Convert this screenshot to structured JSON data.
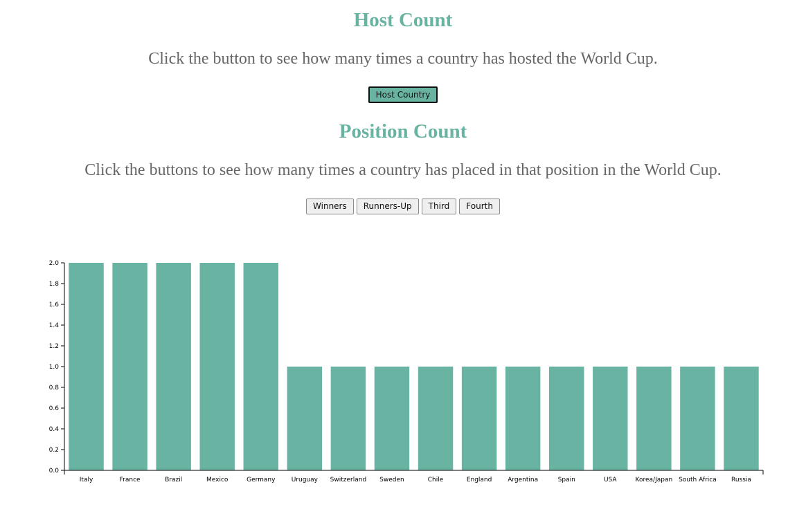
{
  "host_section": {
    "title": "Host Count",
    "description": "Click the button to see how many times a country has hosted the World Cup.",
    "button_label": "Host Country"
  },
  "position_section": {
    "title": "Position Count",
    "description": "Click the buttons to see how many times a country has placed in that position in the World Cup.",
    "buttons": [
      {
        "label": "Winners"
      },
      {
        "label": "Runners-Up"
      },
      {
        "label": "Third"
      },
      {
        "label": "Fourth"
      }
    ]
  },
  "colors": {
    "accent": "#69b3a2",
    "text": "#666666"
  },
  "chart_data": {
    "type": "bar",
    "categories": [
      "Italy",
      "France",
      "Brazil",
      "Mexico",
      "Germany",
      "Uruguay",
      "Switzerland",
      "Sweden",
      "Chile",
      "England",
      "Argentina",
      "Spain",
      "USA",
      "Korea/Japan",
      "South Africa",
      "Russia"
    ],
    "values": [
      2,
      2,
      2,
      2,
      2,
      1,
      1,
      1,
      1,
      1,
      1,
      1,
      1,
      1,
      1,
      1
    ],
    "ylim": [
      0,
      2
    ],
    "yticks": [
      "0.0",
      "0.2",
      "0.4",
      "0.6",
      "0.8",
      "1.0",
      "1.2",
      "1.4",
      "1.6",
      "1.8",
      "2.0"
    ],
    "color": "#69b3a2",
    "grid": false,
    "title": "",
    "xlabel": "",
    "ylabel": ""
  }
}
